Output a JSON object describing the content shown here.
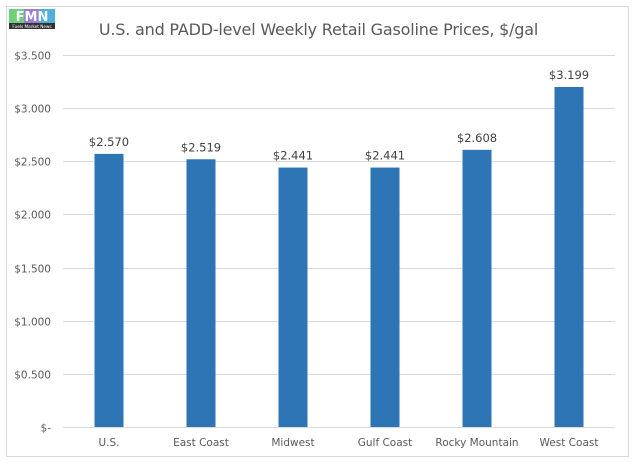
{
  "logo": {
    "letters": "FMN",
    "caption": "Fuels Market News"
  },
  "colors": {
    "bar": "#2E75B6",
    "grid": "#d9d9d9",
    "text": "#595959"
  },
  "chart_data": {
    "type": "bar",
    "title": "U.S. and PADD-level Weekly Retail Gasoline Prices, $/gal",
    "xlabel": "",
    "ylabel": "",
    "categories": [
      "U.S.",
      "East Coast",
      "Midwest",
      "Gulf Coast",
      "Rocky Mountain",
      "West Coast"
    ],
    "values": [
      2.57,
      2.519,
      2.441,
      2.441,
      2.608,
      3.199
    ],
    "data_labels": [
      "$2.570",
      "$2.519",
      "$2.441",
      "$2.441",
      "$2.608",
      "$3.199"
    ],
    "ylim": [
      0,
      3.5
    ],
    "yticks": [
      0,
      0.5,
      1.0,
      1.5,
      2.0,
      2.5,
      3.0,
      3.5
    ],
    "ytick_labels": [
      "$-",
      "$0.500",
      "$1.000",
      "$1.500",
      "$2.000",
      "$2.500",
      "$3.000",
      "$3.500"
    ],
    "grid": true,
    "legend": "none"
  }
}
